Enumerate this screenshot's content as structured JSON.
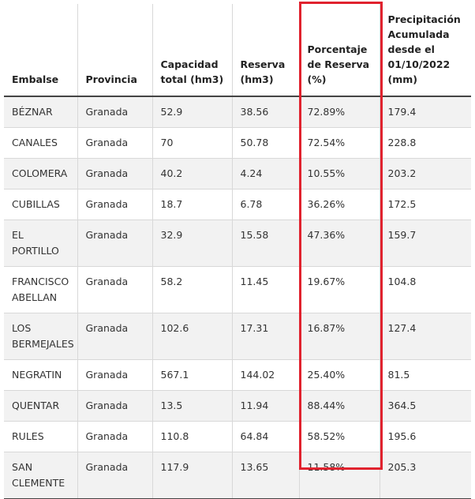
{
  "table": {
    "headers": [
      "Embalse",
      "Provincia",
      "Capacidad total (hm3)",
      "Reserva (hm3)",
      "Porcentaje de Reserva (%)",
      "Precipitación Acumulada desde el 01/10/2022 (mm)"
    ],
    "rows": [
      [
        "BÉZNAR",
        "Granada",
        "52.9",
        "38.56",
        "72.89%",
        "179.4"
      ],
      [
        "CANALES",
        "Granada",
        "70",
        "50.78",
        "72.54%",
        "228.8"
      ],
      [
        "COLOMERA",
        "Granada",
        "40.2",
        "4.24",
        "10.55%",
        "203.2"
      ],
      [
        "CUBILLAS",
        "Granada",
        "18.7",
        "6.78",
        "36.26%",
        "172.5"
      ],
      [
        "EL PORTILLO",
        "Granada",
        "32.9",
        "15.58",
        "47.36%",
        "159.7"
      ],
      [
        "FRANCISCO ABELLAN",
        "Granada",
        "58.2",
        "11.45",
        "19.67%",
        "104.8"
      ],
      [
        "LOS BERMEJALES",
        "Granada",
        "102.6",
        "17.31",
        "16.87%",
        "127.4"
      ],
      [
        "NEGRATIN",
        "Granada",
        "567.1",
        "144.02",
        "25.40%",
        "81.5"
      ],
      [
        "QUENTAR",
        "Granada",
        "13.5",
        "11.94",
        "88.44%",
        "364.5"
      ],
      [
        "RULES",
        "Granada",
        "110.8",
        "64.84",
        "58.52%",
        "195.6"
      ],
      [
        "SAN CLEMENTE",
        "Granada",
        "117.9",
        "13.65",
        "11.58%",
        "205.3"
      ]
    ]
  },
  "highlight_color": "#e0222e"
}
